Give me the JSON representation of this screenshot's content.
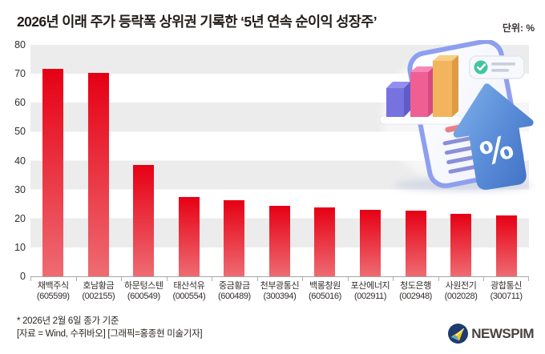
{
  "header": {
    "title": "2026년 이래 주가 등락폭 상위권 기록한 ‘5년 연속 순이익 성장주’",
    "unit_label": "단위: %"
  },
  "chart_data": {
    "type": "bar",
    "categories": [
      "채백주식",
      "호남황금",
      "하문텅스텐",
      "태산석유",
      "중금황금",
      "천부광통신",
      "백롱창원",
      "포산에너지",
      "청도은행",
      "사원전기",
      "광합통신"
    ],
    "codes": [
      "(605599)",
      "(002155)",
      "(600549)",
      "(000554)",
      "(600489)",
      "(300394)",
      "(605016)",
      "(002911)",
      "(002948)",
      "(002028)",
      "(300711)"
    ],
    "values": [
      71.7,
      70.4,
      38.4,
      27.3,
      26.2,
      24.4,
      23.9,
      22.9,
      22.8,
      21.6,
      21.1
    ],
    "title": "2026년 이래 주가 등락폭 상위권 기록한 ‘5년 연속 순이익 성장주’",
    "xlabel": "",
    "ylabel": "단위: %",
    "ylim": [
      0,
      80
    ],
    "yticks": [
      80,
      70,
      60,
      50,
      40,
      30,
      20,
      10,
      0
    ],
    "grid": "horizontal-bands",
    "legend": "none",
    "bar_color_top": "#e60014",
    "bar_color_bottom": "#ee6b72",
    "band_color": "#ececec",
    "axis_color": "#a5a5a5"
  },
  "footer": {
    "note": "* 2026년 2월 6일 종가 기준",
    "source": "[자료 = Wind, 수쥐바오] [그래픽=홍종현 미술기자]",
    "logo_text": "NEWSPIM"
  },
  "illustration": {
    "description": "3d-phone-report-with-bar-chart-and-blue-growth-arrow-percent",
    "arrow_color": "#5b8ed9",
    "bar_colors": [
      "#7672e0",
      "#ef5f94",
      "#f2b55e"
    ],
    "check_color": "#43c59e",
    "percent_symbol": "%"
  }
}
